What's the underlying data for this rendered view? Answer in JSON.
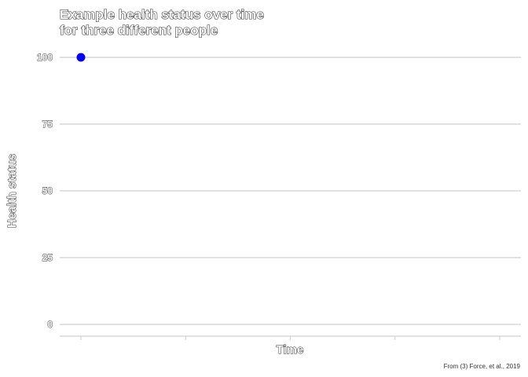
{
  "chart_data": {
    "type": "scatter",
    "title_lines": [
      "Example health status over time",
      "for three different people"
    ],
    "xlabel": "Time",
    "ylabel": "Health status",
    "caption": "From (3) Force, et al., 2019",
    "ylim": [
      0,
      100
    ],
    "y_ticks": [
      0,
      25,
      50,
      75,
      100
    ],
    "y_tick_labels": [
      "0",
      "25",
      "50",
      "75",
      "100"
    ],
    "x_tick_count": 5,
    "x_range": [
      0,
      4
    ],
    "series": [
      {
        "x": [
          0
        ],
        "values": [
          100
        ],
        "color": "#0000ff"
      }
    ],
    "grid": true,
    "legend": "none"
  }
}
